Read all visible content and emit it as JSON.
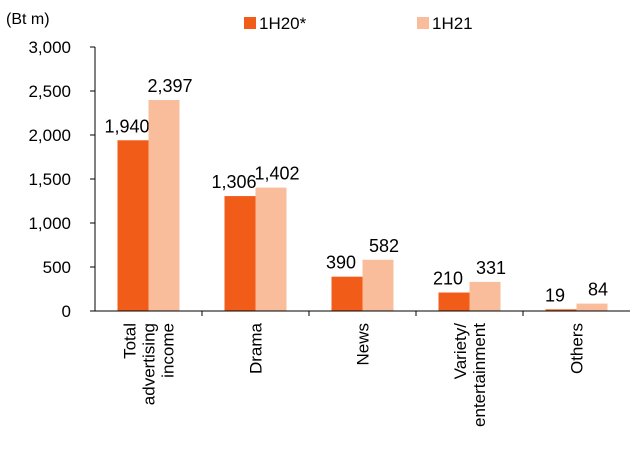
{
  "chart_data": {
    "type": "bar",
    "unit_label": "(Bt m)",
    "categories": [
      [
        "Total",
        "advertising",
        "income"
      ],
      [
        "Drama"
      ],
      [
        "News"
      ],
      [
        "Variety/",
        "entertainment"
      ],
      [
        "Others"
      ]
    ],
    "series": [
      {
        "name": "1H20*",
        "color": "#f25c19",
        "values": [
          1940,
          1306,
          390,
          210,
          19
        ],
        "labels": [
          "1,940",
          "1,306",
          "390",
          "210",
          "19"
        ]
      },
      {
        "name": "1H21",
        "color": "#f9bd9b",
        "values": [
          2397,
          1402,
          582,
          331,
          84
        ],
        "labels": [
          "2,397",
          "1,402",
          "582",
          "331",
          "84"
        ]
      }
    ],
    "yticks": [
      "0",
      "500",
      "1,000",
      "1,500",
      "2,000",
      "2,500",
      "3,000"
    ],
    "ylim": [
      0,
      3000
    ],
    "grid": false,
    "legend_position": "top"
  }
}
